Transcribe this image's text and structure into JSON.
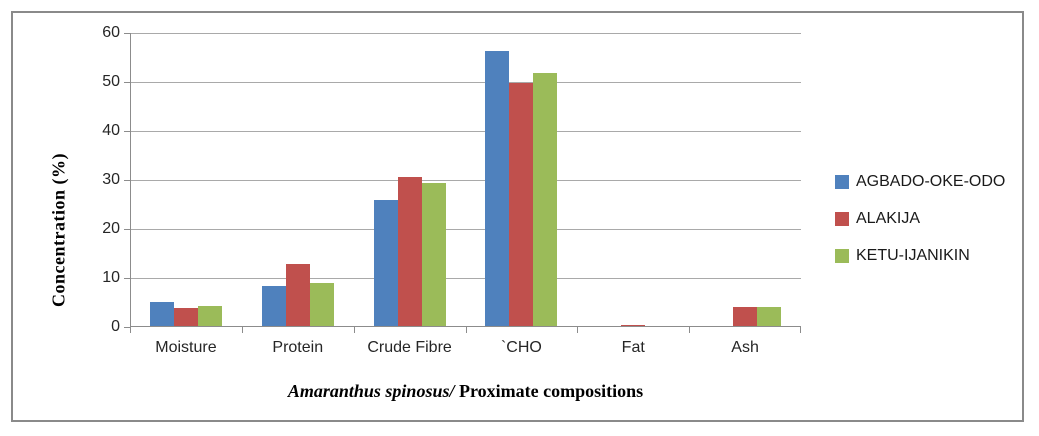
{
  "chart_data": {
    "type": "bar",
    "categories": [
      "Moisture",
      "Protein",
      "Crude Fibre",
      "`CHO",
      "Fat",
      "Ash"
    ],
    "series": [
      {
        "name": "AGBADO-OKE-ODO",
        "color": "#4F81BD",
        "values": [
          5.2,
          8.4,
          26.0,
          56.3,
          0.3,
          0
        ]
      },
      {
        "name": "ALAKIJA",
        "color": "#C0504D",
        "values": [
          3.9,
          12.9,
          30.7,
          49.7,
          0.5,
          4.0
        ]
      },
      {
        "name": "KETU-IJANIKIN",
        "color": "#9BBB59",
        "values": [
          4.3,
          9.0,
          29.3,
          51.9,
          0.3,
          4.0
        ]
      }
    ],
    "ylabel": "Concentration (%)",
    "xlabel_italic": "Amaranthus spinosus/",
    "xlabel_rest": "Proximate compositions",
    "ylim": [
      0,
      60
    ],
    "yticks": [
      0,
      10,
      20,
      30,
      40,
      50,
      60
    ],
    "grid": true,
    "legend_position": "right",
    "colors": {
      "axis": "#8c8c8c",
      "gridline": "#a9a9a9",
      "tick_label": "#262626",
      "frame_border": "#8a8a8a",
      "background": "#ffffff"
    }
  }
}
